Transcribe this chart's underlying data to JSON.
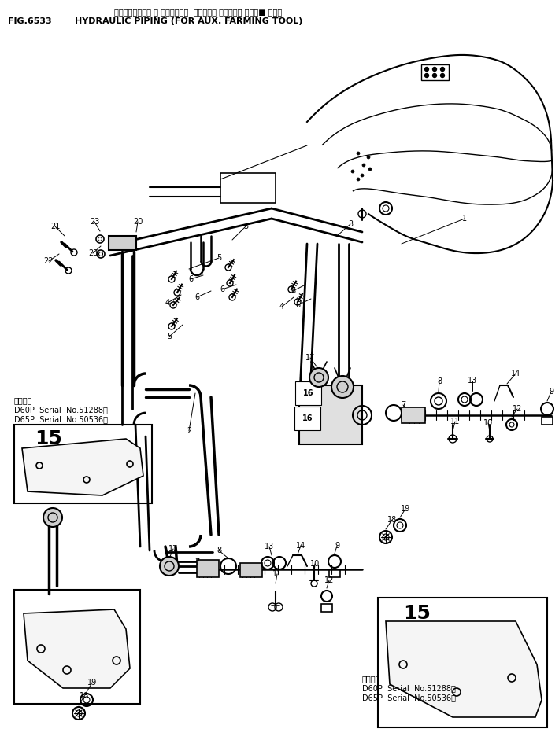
{
  "title_jp": "ハイト゛ロリック パ イヒ゛ンク゛  （ノウコウ サキ゛ウキ ホシ゛■ ヨウ）",
  "title_en": "HYDRAULIC PIPING (FOR AUX. FARMING TOOL)",
  "fig_no": "FIG.6533",
  "bg_color": "#ffffff",
  "line_color": "#000000",
  "text_color": "#000000"
}
